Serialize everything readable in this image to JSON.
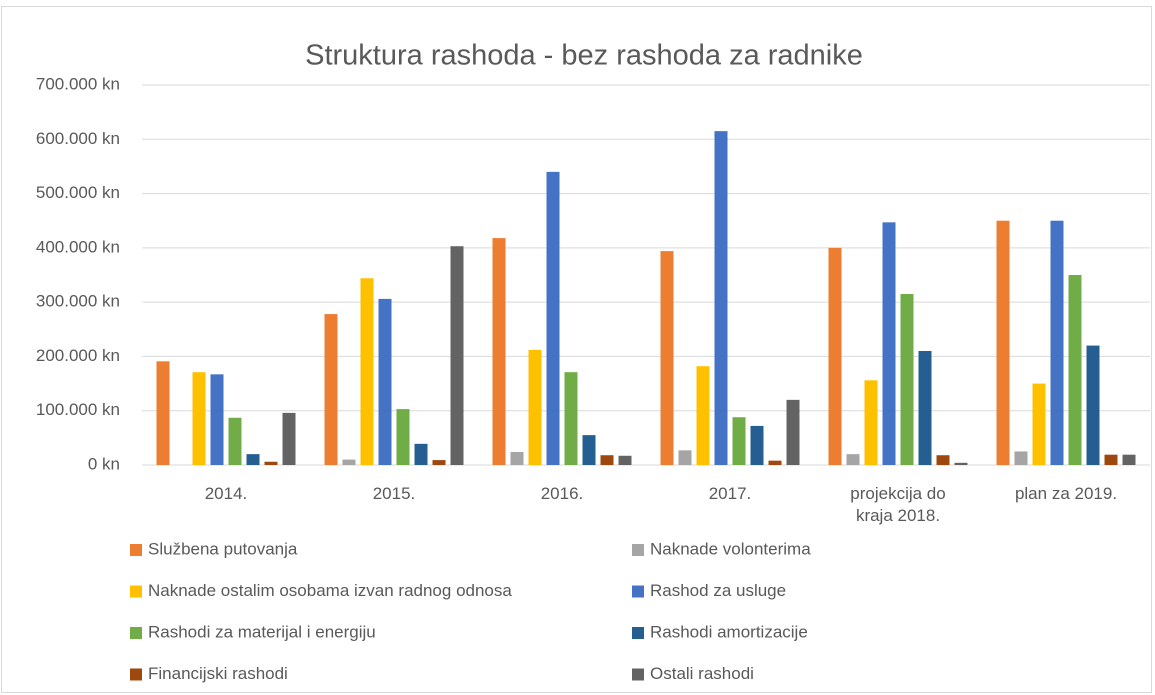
{
  "chart_data": {
    "type": "bar",
    "title": "Struktura rashoda - bez rashoda za radnike",
    "categories": [
      "2014.",
      "2015.",
      "2016.",
      "2017.",
      "projekcija do kraja 2018.",
      "plan za 2019."
    ],
    "series": [
      {
        "name": "Službena putovanja",
        "color": "#ED7D31",
        "values": [
          191000,
          278000,
          418000,
          394000,
          400000,
          450000
        ]
      },
      {
        "name": "Naknade volonterima",
        "color": "#A5A5A5",
        "values": [
          0,
          10000,
          24000,
          27000,
          20000,
          25000
        ]
      },
      {
        "name": "Naknade ostalim osobama izvan radnog odnosa",
        "color": "#FFC000",
        "values": [
          171000,
          344000,
          212000,
          182000,
          156000,
          150000
        ]
      },
      {
        "name": "Rashod za usluge",
        "color": "#4472C4",
        "values": [
          167000,
          306000,
          540000,
          615000,
          447000,
          450000
        ]
      },
      {
        "name": "Rashodi za materijal i energiju",
        "color": "#70AD47",
        "values": [
          87000,
          103000,
          171000,
          88000,
          315000,
          350000
        ]
      },
      {
        "name": "Rashodi amortizacije",
        "color": "#255E91",
        "values": [
          20000,
          39000,
          55000,
          72000,
          210000,
          220000
        ]
      },
      {
        "name": "Financijski rashodi",
        "color": "#9E480E",
        "values": [
          6000,
          9000,
          18000,
          8000,
          18000,
          19000
        ]
      },
      {
        "name": "Ostali rashodi",
        "color": "#636363",
        "values": [
          96000,
          403000,
          17000,
          120000,
          4000,
          19000
        ]
      }
    ],
    "ylim": [
      0,
      700000
    ],
    "yticks": [
      {
        "value": 0,
        "label": "0 kn"
      },
      {
        "value": 100000,
        "label": "100.000 kn"
      },
      {
        "value": 200000,
        "label": "200.000 kn"
      },
      {
        "value": 300000,
        "label": "300.000 kn"
      },
      {
        "value": 400000,
        "label": "400.000 kn"
      },
      {
        "value": 500000,
        "label": "500.000 kn"
      },
      {
        "value": 600000,
        "label": "600.000 kn"
      },
      {
        "value": 700000,
        "label": "700.000 kn"
      }
    ],
    "grid": true,
    "legend": "bottom"
  }
}
